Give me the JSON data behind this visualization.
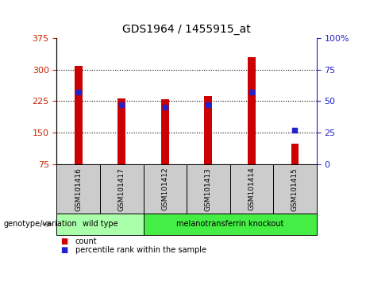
{
  "title": "GDS1964 / 1455915_at",
  "samples": [
    "GSM101416",
    "GSM101417",
    "GSM101412",
    "GSM101413",
    "GSM101414",
    "GSM101415"
  ],
  "bar_values": [
    308,
    232,
    230,
    238,
    330,
    125
  ],
  "bar_bottom": 75,
  "percentile_values": [
    57,
    47,
    45,
    47,
    57,
    27
  ],
  "left_yticks": [
    75,
    150,
    225,
    300,
    375
  ],
  "right_yticks": [
    0,
    25,
    50,
    75,
    100
  ],
  "left_ylim": [
    75,
    375
  ],
  "right_ylim": [
    0,
    100
  ],
  "bar_color": "#cc0000",
  "percentile_color": "#2222cc",
  "groups": [
    {
      "label": "wild type",
      "samples": [
        0,
        1
      ],
      "color": "#aaffaa"
    },
    {
      "label": "melanotransferrin knockout",
      "samples": [
        2,
        3,
        4,
        5
      ],
      "color": "#44ee44"
    }
  ],
  "group_label": "genotype/variation",
  "legend_count_label": "count",
  "legend_pct_label": "percentile rank within the sample",
  "tick_label_area_color": "#cccccc",
  "bar_width": 0.18
}
